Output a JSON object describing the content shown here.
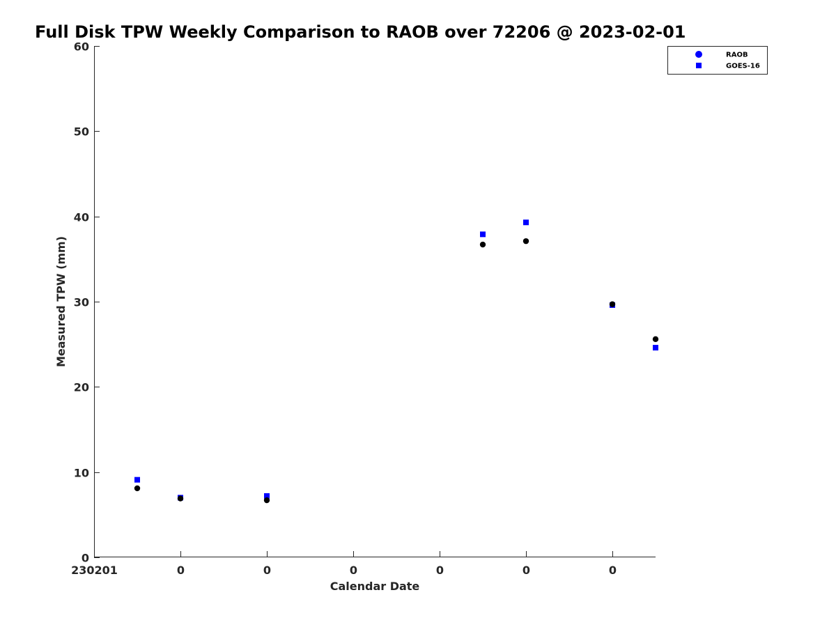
{
  "chart_data": {
    "type": "scatter",
    "title": "Full Disk TPW Weekly Comparison to RAOB over 72206 @ 2023-02-01",
    "xlabel": "Calendar Date",
    "ylabel": "Measured TPW (mm)",
    "ylim": [
      0,
      60
    ],
    "y_ticks": [
      0,
      10,
      20,
      30,
      40,
      50,
      60
    ],
    "x_tick_labels": [
      "230201",
      "0",
      "0",
      "0",
      "0",
      "0",
      "0"
    ],
    "legend_position": "top-right",
    "grid": false,
    "series": [
      {
        "name": "RAOB",
        "marker": "circle",
        "legend_color": "#0000ff",
        "point_color": "#000000",
        "points": [
          {
            "x": 1.5,
            "y": 8.1
          },
          {
            "x": 2.0,
            "y": 6.9
          },
          {
            "x": 3.0,
            "y": 6.7
          },
          {
            "x": 5.5,
            "y": 36.7
          },
          {
            "x": 6.0,
            "y": 37.1
          },
          {
            "x": 7.0,
            "y": 29.7
          },
          {
            "x": 7.5,
            "y": 25.6
          }
        ]
      },
      {
        "name": "GOES-16",
        "marker": "square",
        "legend_color": "#0000ff",
        "point_color": "#0000ff",
        "points": [
          {
            "x": 1.5,
            "y": 9.1
          },
          {
            "x": 2.0,
            "y": 7.0
          },
          {
            "x": 3.0,
            "y": 7.2
          },
          {
            "x": 5.5,
            "y": 37.9
          },
          {
            "x": 6.0,
            "y": 39.3
          },
          {
            "x": 7.0,
            "y": 29.6
          },
          {
            "x": 7.5,
            "y": 24.6
          }
        ]
      }
    ]
  }
}
